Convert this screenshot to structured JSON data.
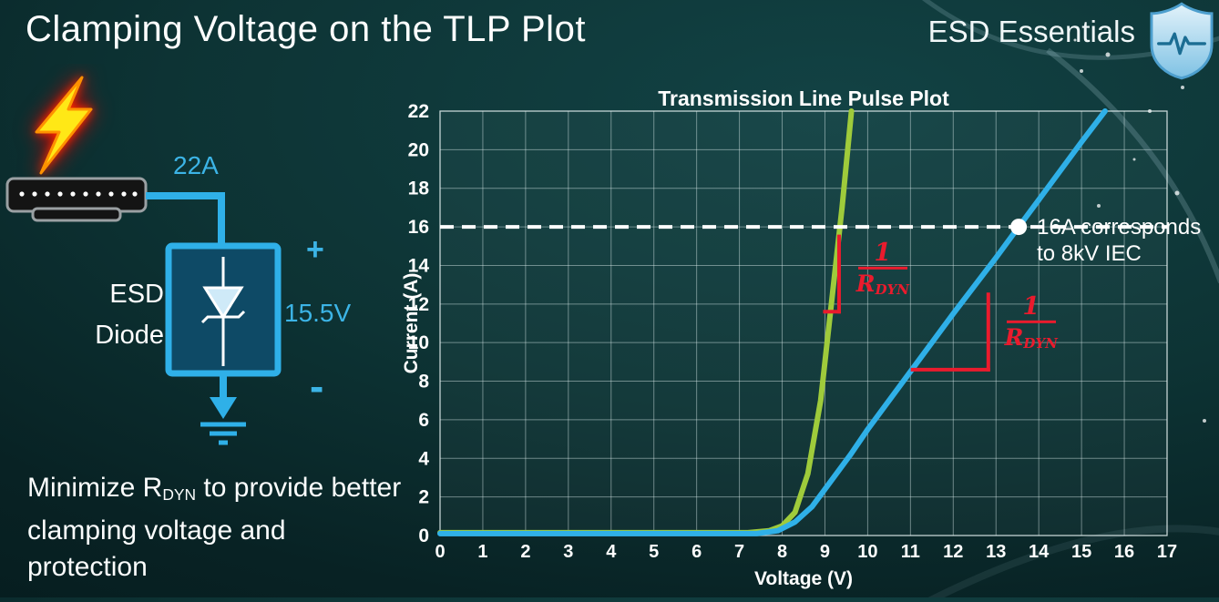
{
  "slide": {
    "title": "Clamping Voltage on the TLP Plot",
    "brand": "ESD Essentials"
  },
  "diagram": {
    "surge_current": "22A",
    "device_line1": "ESD",
    "device_line2": "Diode",
    "plus": "+",
    "clamp_voltage": "15.5V",
    "minus": "-"
  },
  "footer": {
    "prefix": "Minimize R",
    "sub": "DYN",
    "suffix": " to provide better clamping voltage and protection"
  },
  "chart_data": {
    "type": "line",
    "title": "Transmission Line Pulse Plot",
    "xlabel": "Voltage (V)",
    "ylabel": "Current (A)",
    "xlim": [
      0,
      17
    ],
    "ylim": [
      0,
      22
    ],
    "x_ticks": [
      0,
      1,
      2,
      3,
      4,
      5,
      6,
      7,
      8,
      9,
      10,
      11,
      12,
      13,
      14,
      15,
      16,
      17
    ],
    "y_ticks": [
      0,
      2,
      4,
      6,
      8,
      10,
      12,
      14,
      16,
      18,
      20,
      22
    ],
    "grid": true,
    "series": [
      {
        "name": "green_curve_low_rdyn",
        "color": "#9fcb3b",
        "points": [
          [
            0,
            0.15
          ],
          [
            7.2,
            0.15
          ],
          [
            7.7,
            0.25
          ],
          [
            8.0,
            0.5
          ],
          [
            8.3,
            1.2
          ],
          [
            8.6,
            3.2
          ],
          [
            8.9,
            7
          ],
          [
            9.15,
            12
          ],
          [
            9.4,
            17
          ],
          [
            9.62,
            22
          ]
        ]
      },
      {
        "name": "blue_curve_high_rdyn",
        "color": "#2fb0e8",
        "points": [
          [
            0,
            0.1
          ],
          [
            7.4,
            0.1
          ],
          [
            7.9,
            0.25
          ],
          [
            8.3,
            0.7
          ],
          [
            8.7,
            1.5
          ],
          [
            9.1,
            2.7
          ],
          [
            9.6,
            4.2
          ],
          [
            10,
            5.5
          ],
          [
            11,
            8.5
          ],
          [
            12,
            11.5
          ],
          [
            13,
            14.4
          ],
          [
            13.53,
            16
          ],
          [
            14,
            17.4
          ],
          [
            15,
            20.4
          ],
          [
            15.55,
            22
          ]
        ]
      }
    ],
    "reference": {
      "y": 16,
      "color": "#ffffff",
      "style": "dashed"
    },
    "marker": {
      "x": 13.53,
      "y": 16,
      "label_lines": [
        "16A corresponds",
        "to 8kV IEC"
      ]
    },
    "slope_label": {
      "numerator": "1",
      "denominator": "R",
      "denominator_sub": "DYN",
      "color": "#ea1b2d"
    },
    "slope_indicators": [
      {
        "segments": [
          [
            [
              9.33,
              15.5
            ],
            [
              9.33,
              11.6
            ]
          ],
          [
            [
              9.0,
              11.6
            ],
            [
              9.33,
              11.6
            ]
          ]
        ],
        "label_center": [
          10.35,
          13.7
        ]
      },
      {
        "segments": [
          [
            [
              11.05,
              8.6
            ],
            [
              12.82,
              8.6
            ]
          ],
          [
            [
              12.82,
              8.6
            ],
            [
              12.82,
              12.5
            ]
          ]
        ],
        "label_center": [
          13.82,
          10.9
        ]
      }
    ]
  }
}
